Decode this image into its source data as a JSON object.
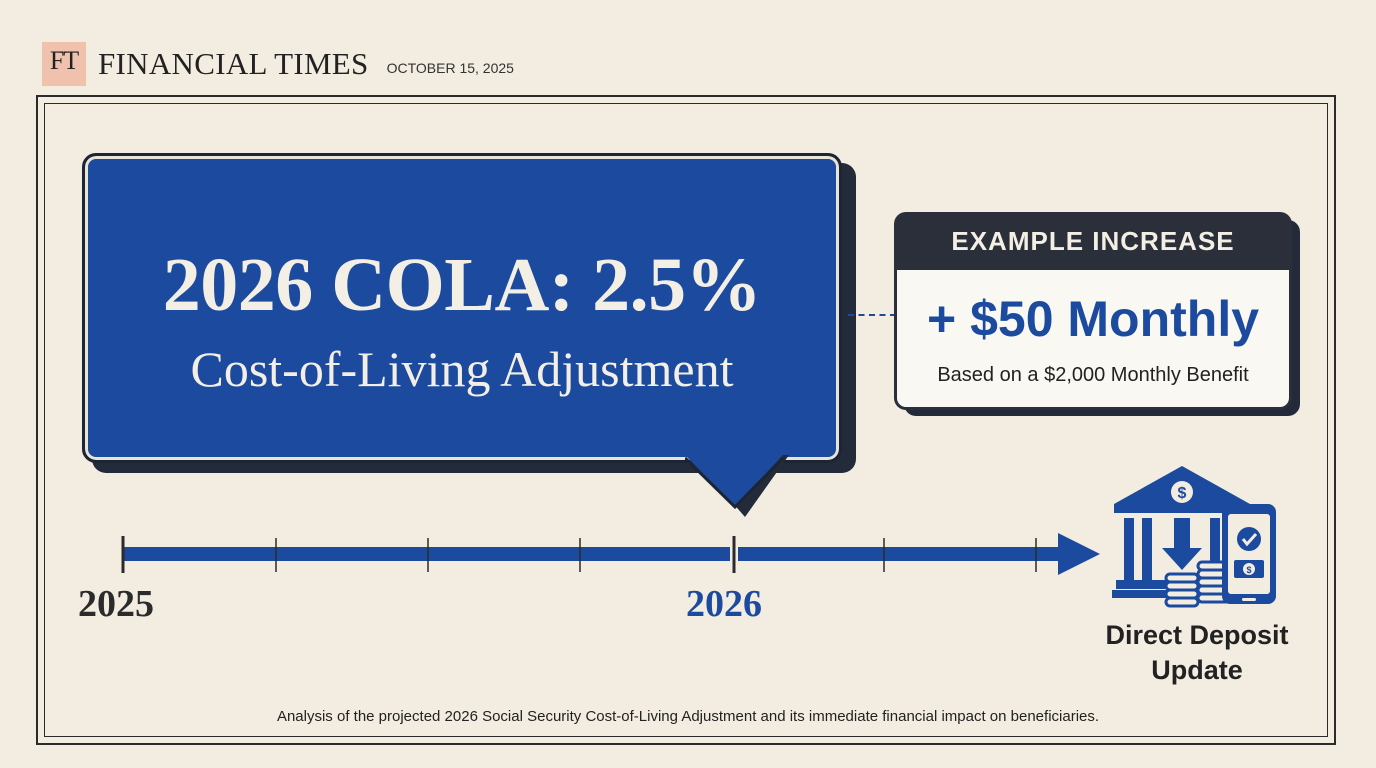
{
  "masthead": {
    "logo": "FT",
    "publication": "FINANCIAL TIMES",
    "date": "OCTOBER 15, 2025",
    "logo_color": "#f0c2ae"
  },
  "headline": {
    "title": "2026 COLA: 2.5%",
    "subtitle": "Cost-of-Living Adjustment",
    "bubble_color": "#1b4a9e"
  },
  "example": {
    "header": "EXAMPLE INCREASE",
    "amount": "+ $50 Monthly",
    "note": "Based on a $2,000 Monthly Benefit"
  },
  "timeline": {
    "start_year": "2025",
    "end_year": "2026",
    "line_color": "#1b4a9e"
  },
  "deposit": {
    "icon": "bank-deposit-icon",
    "label_line1": "Direct Deposit",
    "label_line2": "Update"
  },
  "footnote": "Analysis of the projected 2026 Social Security Cost-of-Living Adjustment and its immediate financial impact on beneficiaries."
}
